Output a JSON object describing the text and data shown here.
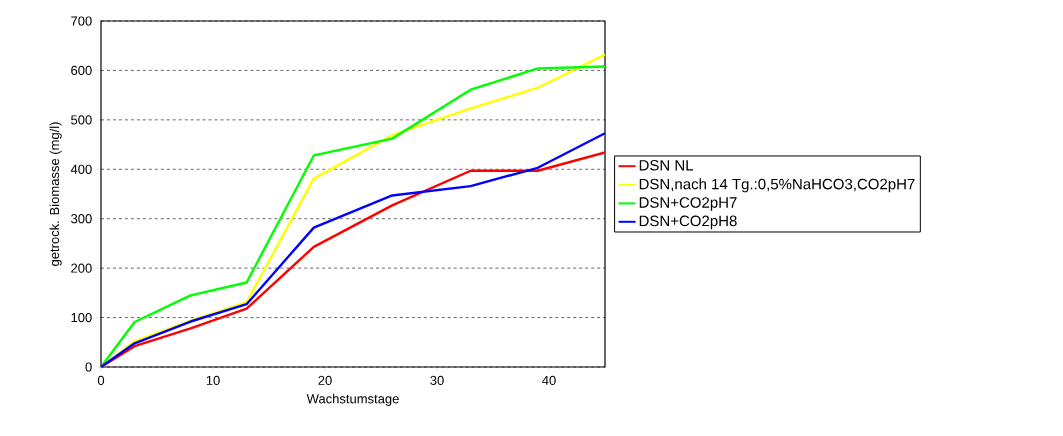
{
  "chart_data": {
    "type": "line",
    "xlabel": "Wachstumstage",
    "ylabel": "getrock. Biomasse (mg/l)",
    "x": [
      0,
      3,
      8,
      13,
      19,
      26,
      33,
      39,
      45
    ],
    "series": [
      {
        "name": "DSN NL",
        "color": "#ff0000",
        "values": [
          0,
          42,
          78,
          118,
          243,
          327,
          397,
          397,
          434
        ]
      },
      {
        "name": "DSN,nach 14 Tg.:0,5%NaHCO3,CO2pH7",
        "color": "#ffff00",
        "values": [
          0,
          52,
          94,
          131,
          381,
          469,
          523,
          565,
          632
        ]
      },
      {
        "name": "DSN+CO2pH7",
        "color": "#00ff00",
        "values": [
          0,
          91,
          145,
          171,
          428,
          462,
          561,
          604,
          608
        ]
      },
      {
        "name": "DSN+CO2pH8",
        "color": "#0000ff",
        "values": [
          0,
          48,
          92,
          127,
          282,
          347,
          366,
          403,
          473
        ]
      }
    ],
    "xlim": [
      0,
      45
    ],
    "ylim": [
      0,
      700
    ],
    "xticks": [
      0,
      10,
      20,
      30,
      40
    ],
    "yticks": [
      0,
      100,
      200,
      300,
      400,
      500,
      600,
      700
    ],
    "grid": "y",
    "legend": "right",
    "marker": "none",
    "line_style": "solid"
  }
}
